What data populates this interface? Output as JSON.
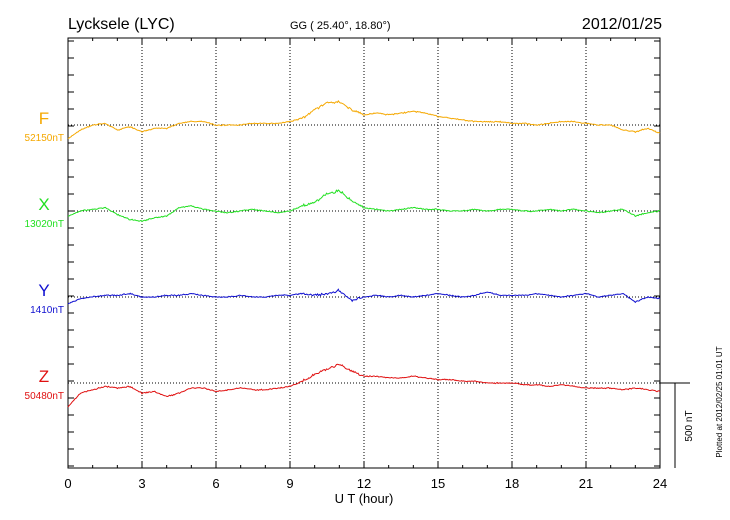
{
  "header": {
    "station": "Lycksele (LYC)",
    "coords": "GG ( 25.40°,  18.80°)",
    "date": "2012/01/25"
  },
  "footer": {
    "plotted": "Plotted at 2012/02/25 01:01  UT",
    "scale_label": "500 nT"
  },
  "chart_data": {
    "type": "line",
    "title": "Lycksele (LYC)",
    "xlabel": "U T (hour)",
    "ylabel": "",
    "xlim": [
      0,
      24
    ],
    "xticks": [
      0,
      3,
      6,
      9,
      12,
      15,
      18,
      21,
      24
    ],
    "xtick_labels": [
      "0",
      "3",
      "6",
      "9",
      "12",
      "15",
      "18",
      "21",
      "24"
    ],
    "grid": true,
    "scale_bar_nT": 500,
    "series": [
      {
        "name": "F",
        "baseline_label": "52150nT",
        "color": "#f5a800",
        "x": [
          0,
          0.5,
          1,
          1.5,
          2,
          2.5,
          3,
          3.5,
          4,
          4.5,
          5,
          5.5,
          6,
          6.5,
          7,
          7.5,
          8,
          8.5,
          9,
          9.5,
          10,
          10.5,
          11,
          11.5,
          12,
          12.5,
          13,
          13.5,
          14,
          14.5,
          15,
          15.5,
          16,
          16.5,
          17,
          17.5,
          18,
          18.5,
          19,
          19.5,
          20,
          20.5,
          21,
          21.5,
          22,
          22.5,
          23,
          23.5,
          24
        ],
        "values": [
          -80,
          -30,
          0,
          10,
          -30,
          -10,
          -40,
          -20,
          -20,
          10,
          20,
          20,
          0,
          0,
          0,
          10,
          10,
          10,
          20,
          40,
          90,
          130,
          140,
          90,
          60,
          70,
          60,
          70,
          80,
          70,
          50,
          40,
          30,
          20,
          20,
          20,
          10,
          10,
          0,
          10,
          20,
          20,
          10,
          0,
          0,
          -30,
          -40,
          -20,
          -50
        ]
      },
      {
        "name": "X",
        "baseline_label": "13020nT",
        "color": "#22e022",
        "x": [
          0,
          0.5,
          1,
          1.5,
          2,
          2.5,
          3,
          3.5,
          4,
          4.5,
          5,
          5.5,
          6,
          6.5,
          7,
          7.5,
          8,
          8.5,
          9,
          9.5,
          10,
          10.5,
          11,
          11.5,
          12,
          12.5,
          13,
          13.5,
          14,
          14.5,
          15,
          15.5,
          16,
          16.5,
          17,
          17.5,
          18,
          18.5,
          19,
          19.5,
          20,
          20.5,
          21,
          21.5,
          22,
          22.5,
          23,
          23.5,
          24
        ],
        "values": [
          -30,
          0,
          10,
          20,
          -20,
          -50,
          -60,
          -40,
          -30,
          20,
          30,
          10,
          0,
          -10,
          0,
          10,
          0,
          -10,
          0,
          30,
          50,
          100,
          120,
          60,
          20,
          10,
          0,
          10,
          20,
          10,
          10,
          0,
          0,
          10,
          0,
          10,
          10,
          0,
          0,
          10,
          0,
          10,
          0,
          -10,
          0,
          10,
          -30,
          -10,
          0
        ]
      },
      {
        "name": "Y",
        "baseline_label": "1410nT",
        "color": "#1010d0",
        "x": [
          0,
          0.5,
          1,
          1.5,
          2,
          2.5,
          3,
          3.5,
          4,
          4.5,
          5,
          5.5,
          6,
          6.5,
          7,
          7.5,
          8,
          8.5,
          9,
          9.5,
          10,
          10.5,
          11,
          11.5,
          12,
          12.5,
          13,
          13.5,
          14,
          14.5,
          15,
          15.5,
          16,
          16.5,
          17,
          17.5,
          18,
          18.5,
          19,
          19.5,
          20,
          20.5,
          21,
          21.5,
          22,
          22.5,
          23,
          23.5,
          24
        ],
        "values": [
          -40,
          -10,
          0,
          10,
          10,
          20,
          0,
          0,
          10,
          10,
          20,
          10,
          0,
          0,
          10,
          0,
          0,
          10,
          10,
          20,
          10,
          20,
          40,
          -20,
          0,
          10,
          0,
          10,
          0,
          10,
          20,
          10,
          0,
          10,
          30,
          10,
          10,
          10,
          20,
          10,
          0,
          10,
          20,
          0,
          10,
          20,
          -30,
          0,
          -10
        ]
      },
      {
        "name": "Z",
        "baseline_label": "50480nT",
        "color": "#e01010",
        "x": [
          0,
          0.5,
          1,
          1.5,
          2,
          2.5,
          3,
          3.5,
          4,
          4.5,
          5,
          5.5,
          6,
          6.5,
          7,
          7.5,
          8,
          8.5,
          9,
          9.5,
          10,
          10.5,
          11,
          11.5,
          12,
          12.5,
          13,
          13.5,
          14,
          14.5,
          15,
          15.5,
          16,
          16.5,
          17,
          17.5,
          18,
          18.5,
          19,
          19.5,
          20,
          20.5,
          21,
          21.5,
          22,
          22.5,
          23,
          23.5,
          24
        ],
        "values": [
          -140,
          -60,
          -40,
          -20,
          -30,
          -20,
          -60,
          -50,
          -80,
          -60,
          -30,
          -30,
          -50,
          -40,
          -30,
          -40,
          -40,
          -30,
          -20,
          10,
          50,
          80,
          110,
          70,
          40,
          40,
          30,
          30,
          40,
          30,
          20,
          20,
          10,
          10,
          0,
          0,
          0,
          -10,
          -10,
          -20,
          -10,
          -20,
          -30,
          -30,
          -30,
          -40,
          -30,
          -40,
          -50
        ]
      }
    ]
  }
}
